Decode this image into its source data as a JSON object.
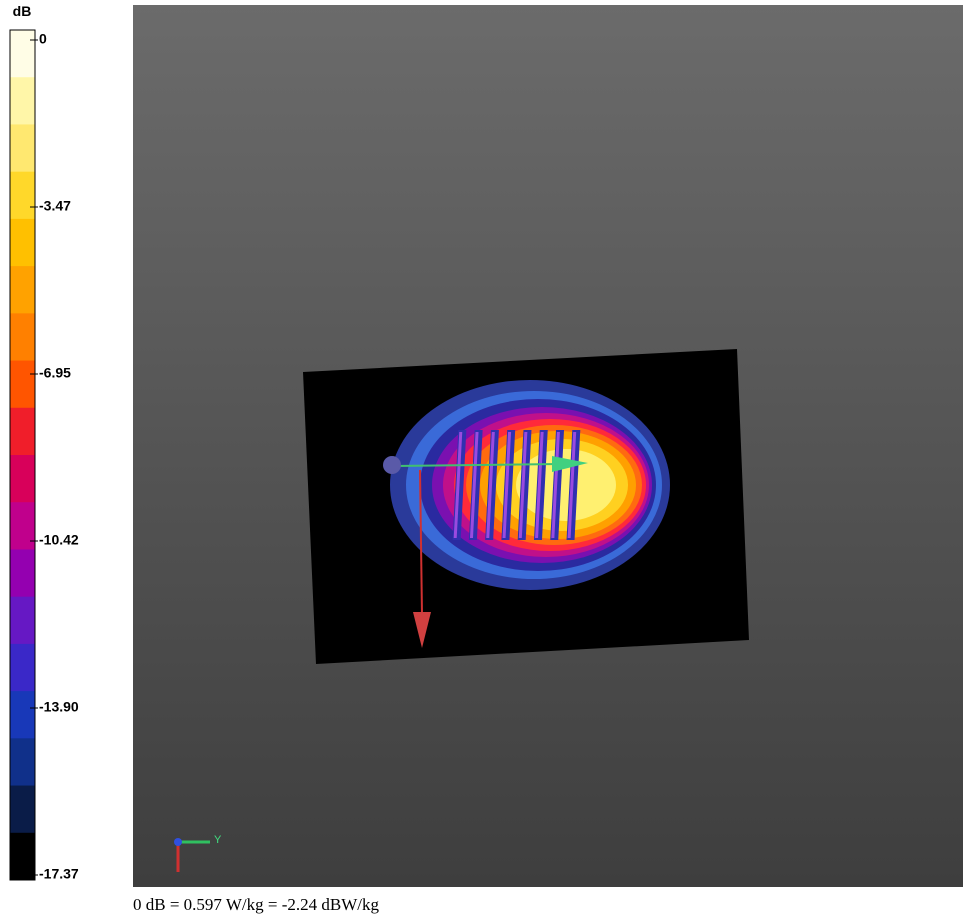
{
  "colorbar": {
    "unit": "dB",
    "ticks": [
      "0",
      "-3.47",
      "-6.95",
      "-10.42",
      "-13.90",
      "-17.37"
    ]
  },
  "axis_triad": {
    "y_label": "Y"
  },
  "footer": "0 dB = 0.597 W/kg = -2.24 dBW/kg"
}
